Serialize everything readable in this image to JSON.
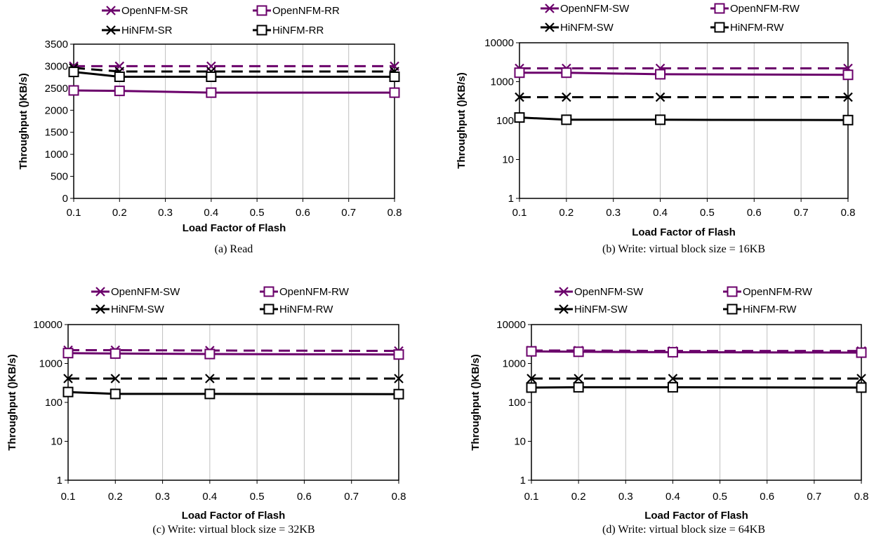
{
  "colors": {
    "purple": "#6b006b",
    "black": "#000000",
    "grid": "#bfbfbf"
  },
  "chart_data": [
    {
      "type": "line",
      "caption": "(a)  Read",
      "xlabel": "Load Factor of Flash",
      "ylabel": "Throughput ()KB/s)",
      "yscale": "linear",
      "ylim": [
        0,
        3500
      ],
      "yticks": [
        0,
        500,
        1000,
        1500,
        2000,
        2500,
        3000,
        3500
      ],
      "ytick_labels": [
        "0",
        "500",
        "1000",
        "1500",
        "2000",
        "2500",
        "3000",
        "3500"
      ],
      "xlim": [
        0.1,
        0.8
      ],
      "xticks": [
        0.1,
        0.2,
        0.3,
        0.4,
        0.5,
        0.6,
        0.7,
        0.8
      ],
      "xtick_labels": [
        "0.1",
        "0.2",
        "0.3",
        "0.4",
        "0.5",
        "0.6",
        "0.7",
        "0.8"
      ],
      "grid": "vertical",
      "legend_position": "top",
      "x": [
        0.1,
        0.2,
        0.4,
        0.8
      ],
      "series": [
        {
          "name": "OpenNFM-SR",
          "values": [
            3000,
            3000,
            3000,
            3000
          ],
          "color": "purple",
          "dash": true,
          "marker": "x"
        },
        {
          "name": "OpenNFM-RR",
          "values": [
            2450,
            2440,
            2400,
            2400
          ],
          "color": "purple",
          "dash": false,
          "marker": "square"
        },
        {
          "name": "HiNFM-SR",
          "values": [
            2960,
            2880,
            2880,
            2880
          ],
          "color": "black",
          "dash": true,
          "marker": "x"
        },
        {
          "name": "HiNFM-RR",
          "values": [
            2870,
            2760,
            2760,
            2760
          ],
          "color": "black",
          "dash": false,
          "marker": "square"
        }
      ]
    },
    {
      "type": "line",
      "caption": "(b)  Write:  virtual  block  size  =  16KB",
      "xlabel": "Load Factor of Flash",
      "ylabel": "Throughput ()KB/s)",
      "yscale": "log",
      "ylim": [
        1,
        10000
      ],
      "yticks": [
        1,
        10,
        100,
        1000,
        10000
      ],
      "ytick_labels": [
        "1",
        "10",
        "100",
        "1000",
        "10000"
      ],
      "xlim": [
        0.1,
        0.8
      ],
      "xticks": [
        0.1,
        0.2,
        0.3,
        0.4,
        0.5,
        0.6,
        0.7,
        0.8
      ],
      "xtick_labels": [
        "0.1",
        "0.2",
        "0.3",
        "0.4",
        "0.5",
        "0.6",
        "0.7",
        "0.8"
      ],
      "grid": "vertical",
      "legend_position": "top",
      "x": [
        0.1,
        0.2,
        0.4,
        0.8
      ],
      "series": [
        {
          "name": "OpenNFM-SW",
          "values": [
            2200,
            2200,
            2200,
            2200
          ],
          "color": "purple",
          "dash": true,
          "marker": "x"
        },
        {
          "name": "OpenNFM-RW",
          "values": [
            1700,
            1700,
            1550,
            1500
          ],
          "color": "purple",
          "dash": false,
          "marker": "square"
        },
        {
          "name": "HiNFM-SW",
          "values": [
            400,
            400,
            400,
            400
          ],
          "color": "black",
          "dash": true,
          "marker": "x"
        },
        {
          "name": "HiNFM-RW",
          "values": [
            120,
            105,
            105,
            103
          ],
          "color": "black",
          "dash": false,
          "marker": "square"
        }
      ]
    },
    {
      "type": "line",
      "caption": "(c)  Write:  virtual  block  size  =  32KB",
      "xlabel": "Load Factor of Flash",
      "ylabel": "Throughput ()KB/s)",
      "yscale": "log",
      "ylim": [
        1,
        10000
      ],
      "yticks": [
        1,
        10,
        100,
        1000,
        10000
      ],
      "ytick_labels": [
        "1",
        "10",
        "100",
        "1000",
        "10000"
      ],
      "xlim": [
        0.1,
        0.8
      ],
      "xticks": [
        0.1,
        0.2,
        0.3,
        0.4,
        0.5,
        0.6,
        0.7,
        0.8
      ],
      "xtick_labels": [
        "0.1",
        "0.2",
        "0.3",
        "0.4",
        "0.5",
        "0.6",
        "0.7",
        "0.8"
      ],
      "grid": "vertical",
      "legend_position": "top",
      "x": [
        0.1,
        0.2,
        0.4,
        0.8
      ],
      "series": [
        {
          "name": "OpenNFM-SW",
          "values": [
            2200,
            2200,
            2150,
            2100
          ],
          "color": "purple",
          "dash": true,
          "marker": "x"
        },
        {
          "name": "OpenNFM-RW",
          "values": [
            1850,
            1800,
            1750,
            1700
          ],
          "color": "purple",
          "dash": false,
          "marker": "square"
        },
        {
          "name": "HiNFM-SW",
          "values": [
            410,
            410,
            410,
            410
          ],
          "color": "black",
          "dash": true,
          "marker": "x"
        },
        {
          "name": "HiNFM-RW",
          "values": [
            185,
            165,
            165,
            163
          ],
          "color": "black",
          "dash": false,
          "marker": "square"
        }
      ]
    },
    {
      "type": "line",
      "caption": "(d)  Write:  virtual  block  size  =  64KB",
      "xlabel": "Load Factor of Flash",
      "ylabel": "Throughput ()KB/s)",
      "yscale": "log",
      "ylim": [
        1,
        10000
      ],
      "yticks": [
        1,
        10,
        100,
        1000,
        10000
      ],
      "ytick_labels": [
        "1",
        "10",
        "100",
        "1000",
        "10000"
      ],
      "xlim": [
        0.1,
        0.8
      ],
      "xticks": [
        0.1,
        0.2,
        0.3,
        0.4,
        0.5,
        0.6,
        0.7,
        0.8
      ],
      "xtick_labels": [
        "0.1",
        "0.2",
        "0.3",
        "0.4",
        "0.5",
        "0.6",
        "0.7",
        "0.8"
      ],
      "grid": "vertical",
      "legend_position": "top",
      "x": [
        0.1,
        0.2,
        0.4,
        0.8
      ],
      "series": [
        {
          "name": "OpenNFM-SW",
          "values": [
            2150,
            2150,
            2100,
            2100
          ],
          "color": "purple",
          "dash": true,
          "marker": "x"
        },
        {
          "name": "OpenNFM-RW",
          "values": [
            2050,
            2000,
            1950,
            1900
          ],
          "color": "purple",
          "dash": false,
          "marker": "square"
        },
        {
          "name": "HiNFM-SW",
          "values": [
            410,
            410,
            410,
            410
          ],
          "color": "black",
          "dash": true,
          "marker": "x"
        },
        {
          "name": "HiNFM-RW",
          "values": [
            240,
            245,
            245,
            240
          ],
          "color": "black",
          "dash": false,
          "marker": "square"
        }
      ]
    }
  ]
}
